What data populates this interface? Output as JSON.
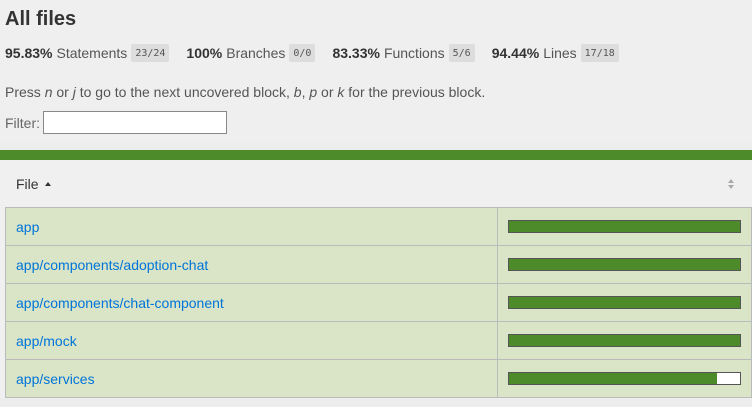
{
  "header": {
    "title": "All files",
    "stats": [
      {
        "pct": "95.83%",
        "label": "Statements",
        "frac": "23/24"
      },
      {
        "pct": "100%",
        "label": "Branches",
        "frac": "0/0"
      },
      {
        "pct": "83.33%",
        "label": "Functions",
        "frac": "5/6"
      },
      {
        "pct": "94.44%",
        "label": "Lines",
        "frac": "17/18"
      }
    ],
    "hint": {
      "t1": "Press ",
      "k1": "n",
      "t2": " or ",
      "k2": "j",
      "t3": " to go to the next uncovered block, ",
      "k3": "b",
      "t4": ", ",
      "k4": "p",
      "t5": " or ",
      "k5": "k",
      "t6": " for the previous block."
    },
    "filter_label": "Filter:",
    "filter_value": ""
  },
  "colors": {
    "high_coverage": "#4d8a2a",
    "row_bg": "#d9e5c6",
    "link": "#0074d9"
  },
  "table": {
    "file_header": "File",
    "rows": [
      {
        "file": "app",
        "coverage": 1.0
      },
      {
        "file": "app/components/adoption-chat",
        "coverage": 1.0
      },
      {
        "file": "app/components/chat-component",
        "coverage": 1.0
      },
      {
        "file": "app/mock",
        "coverage": 1.0
      },
      {
        "file": "app/services",
        "coverage": 0.9
      }
    ]
  }
}
